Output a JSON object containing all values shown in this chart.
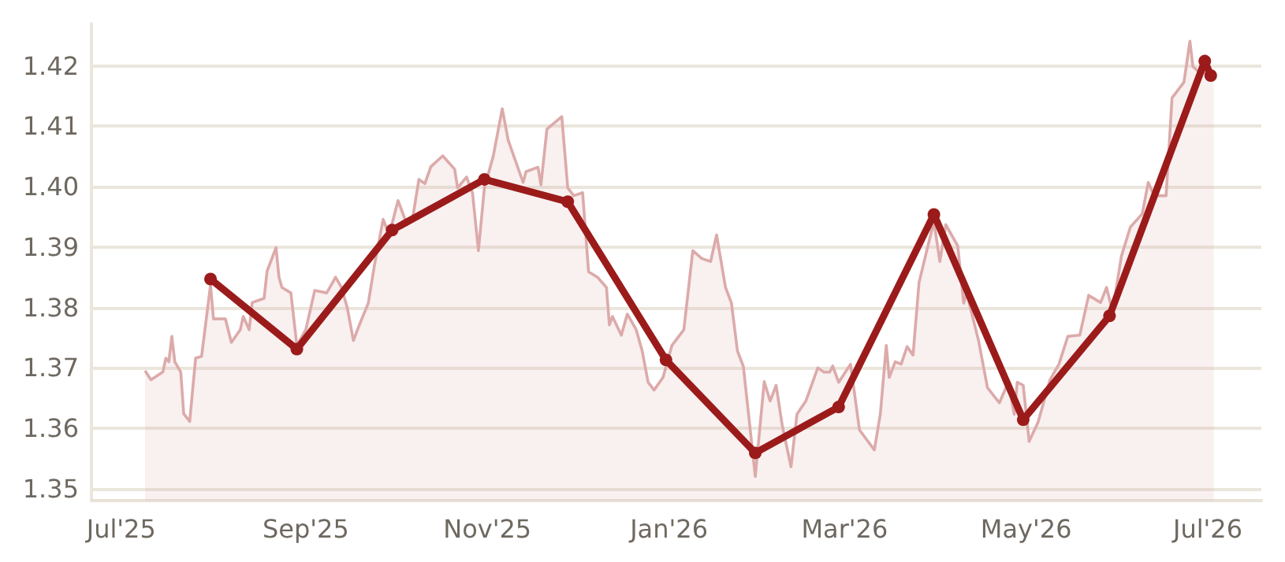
{
  "chart_data": {
    "type": "line",
    "grid": "y",
    "xlim": [
      "2025-06-21",
      "2026-07-19"
    ],
    "xticks": [
      {
        "value": "2025-07-01",
        "label": "Jul'25"
      },
      {
        "value": "2025-09-01",
        "label": "Sep'25"
      },
      {
        "value": "2025-11-01",
        "label": "Nov'25"
      },
      {
        "value": "2026-01-01",
        "label": "Jan'26"
      },
      {
        "value": "2026-03-01",
        "label": "Mar'26"
      },
      {
        "value": "2026-05-01",
        "label": "May'26"
      },
      {
        "value": "2026-07-01",
        "label": "Jul'26"
      }
    ],
    "ylim": [
      1.348,
      1.427
    ],
    "yticks": [
      1.35,
      1.36,
      1.37,
      1.38,
      1.39,
      {
        "value": 1.4,
        "label": "1.40"
      },
      1.41,
      1.42
    ],
    "series": [
      {
        "type": "area",
        "color": "#dcaaaa",
        "marker": "none",
        "x": [
          "2025-07-09",
          "2025-07-11",
          "2025-07-15",
          "2025-07-16",
          "2025-07-17",
          "2025-07-18",
          "2025-07-19",
          "2025-07-21",
          "2025-07-22",
          "2025-07-24",
          "2025-07-26",
          "2025-07-28",
          "2025-07-31",
          "2025-08-01",
          "2025-08-05",
          "2025-08-07",
          "2025-08-10",
          "2025-08-11",
          "2025-08-13",
          "2025-08-14",
          "2025-08-18",
          "2025-08-19",
          "2025-08-22",
          "2025-08-23",
          "2025-08-24",
          "2025-08-27",
          "2025-08-29",
          "2025-09-01",
          "2025-09-04",
          "2025-09-08",
          "2025-09-10",
          "2025-09-11",
          "2025-09-13",
          "2025-09-15",
          "2025-09-17",
          "2025-09-19",
          "2025-09-22",
          "2025-09-24",
          "2025-09-27",
          "2025-09-29",
          "2025-10-02",
          "2025-10-05",
          "2025-10-07",
          "2025-10-09",
          "2025-10-11",
          "2025-10-13",
          "2025-10-17",
          "2025-10-21",
          "2025-10-22",
          "2025-10-25",
          "2025-10-27",
          "2025-10-29",
          "2025-10-31",
          "2025-11-03",
          "2025-11-06",
          "2025-11-08",
          "2025-11-13",
          "2025-11-14",
          "2025-11-18",
          "2025-11-19",
          "2025-11-21",
          "2025-11-26",
          "2025-11-28",
          "2025-11-30",
          "2025-12-03",
          "2025-12-05",
          "2025-12-08",
          "2025-12-11",
          "2025-12-12",
          "2025-12-13",
          "2025-12-16",
          "2025-12-18",
          "2025-12-21",
          "2025-12-23",
          "2025-12-25",
          "2025-12-27",
          "2025-12-30",
          "2026-01-02",
          "2026-01-06",
          "2026-01-09",
          "2026-01-12",
          "2026-01-15",
          "2026-01-17",
          "2026-01-20",
          "2026-01-22",
          "2026-01-24",
          "2026-01-26",
          "2026-01-30",
          "2026-02-02",
          "2026-02-04",
          "2026-02-06",
          "2026-02-08",
          "2026-02-11",
          "2026-02-13",
          "2026-02-16",
          "2026-02-20",
          "2026-02-22",
          "2026-02-24",
          "2026-02-25",
          "2026-02-27",
          "2026-03-03",
          "2026-03-06",
          "2026-03-11",
          "2026-03-13",
          "2026-03-15",
          "2026-03-16",
          "2026-03-18",
          "2026-03-20",
          "2026-03-22",
          "2026-03-24",
          "2026-03-26",
          "2026-03-29",
          "2026-03-31",
          "2026-04-02",
          "2026-04-04",
          "2026-04-08",
          "2026-04-10",
          "2026-04-11",
          "2026-04-15",
          "2026-04-18",
          "2026-04-22",
          "2026-04-25",
          "2026-04-27",
          "2026-04-28",
          "2026-04-30",
          "2026-05-02",
          "2026-05-05",
          "2026-05-09",
          "2026-05-12",
          "2026-05-15",
          "2026-05-19",
          "2026-05-22",
          "2026-05-26",
          "2026-05-28",
          "2026-05-30",
          "2026-06-02",
          "2026-06-05",
          "2026-06-09",
          "2026-06-11",
          "2026-06-13",
          "2026-06-17",
          "2026-06-19",
          "2026-06-23",
          "2026-06-25",
          "2026-06-26",
          "2026-06-28",
          "2026-07-03"
        ],
        "values": [
          1.3695,
          1.368,
          1.3693,
          1.3716,
          1.371,
          1.3752,
          1.371,
          1.3693,
          1.3624,
          1.3611,
          1.3716,
          1.3719,
          1.3837,
          1.3781,
          1.3781,
          1.3742,
          1.3763,
          1.3785,
          1.3763,
          1.3808,
          1.3815,
          1.386,
          1.3899,
          1.385,
          1.3833,
          1.3824,
          1.3737,
          1.3763,
          1.3828,
          1.3824,
          1.3841,
          1.385,
          1.3833,
          1.3798,
          1.3745,
          1.3771,
          1.3807,
          1.3868,
          1.3946,
          1.392,
          1.3977,
          1.3937,
          1.3951,
          1.4012,
          1.4005,
          1.4033,
          1.4051,
          1.4029,
          1.3998,
          1.4016,
          1.399,
          1.3894,
          1.3998,
          1.4051,
          1.4129,
          1.4077,
          1.4007,
          1.4025,
          1.4032,
          1.4003,
          1.4095,
          1.4116,
          1.3998,
          1.3985,
          1.399,
          1.3859,
          1.385,
          1.3833,
          1.3771,
          1.3785,
          1.3754,
          1.3789,
          1.3763,
          1.3728,
          1.3676,
          1.3663,
          1.3684,
          1.3737,
          1.3763,
          1.3894,
          1.3881,
          1.3876,
          1.392,
          1.3833,
          1.3807,
          1.3728,
          1.3702,
          1.352,
          1.3677,
          1.3645,
          1.3671,
          1.3606,
          1.3536,
          1.3623,
          1.3645,
          1.37,
          1.3693,
          1.3693,
          1.3703,
          1.3676,
          1.3706,
          1.3597,
          1.3564,
          1.3623,
          1.3737,
          1.3684,
          1.371,
          1.3706,
          1.3735,
          1.3721,
          1.3841,
          1.3902,
          1.3942,
          1.3876,
          1.3937,
          1.3902,
          1.3807,
          1.3824,
          1.3745,
          1.3667,
          1.3642,
          1.3676,
          1.3623,
          1.3676,
          1.3671,
          1.3578,
          1.361,
          1.368,
          1.3706,
          1.3752,
          1.3754,
          1.382,
          1.3808,
          1.3833,
          1.3793,
          1.3885,
          1.3933,
          1.3955,
          1.4007,
          1.3985,
          1.3985,
          1.4147,
          1.4173,
          1.4241,
          1.4199,
          1.419,
          1.4186
        ]
      },
      {
        "color": "#9b1b1b",
        "marker": "circle",
        "x": [
          "2025-07-31",
          "2025-08-29",
          "2025-09-30",
          "2025-10-31",
          "2025-11-28",
          "2025-12-31",
          "2026-01-30",
          "2026-02-27",
          "2026-03-31",
          "2026-04-30",
          "2026-05-29",
          "2026-06-30",
          "2026-07-02"
        ],
        "values": [
          1.3847,
          1.3731,
          1.3928,
          1.4012,
          1.3975,
          1.3713,
          1.3559,
          1.3635,
          1.3954,
          1.3614,
          1.3786,
          1.4208,
          1.4184
        ]
      }
    ]
  }
}
